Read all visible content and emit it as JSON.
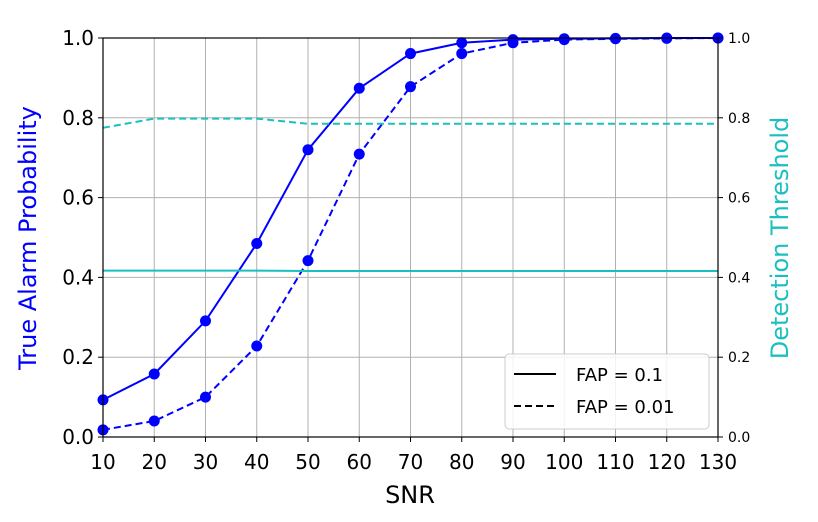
{
  "chart_data": {
    "type": "line",
    "xlabel": "SNR",
    "ylabel": "True Alarm Probability",
    "ylabel_right": "Detection Threshold",
    "x": [
      10,
      20,
      30,
      40,
      50,
      60,
      70,
      80,
      90,
      100,
      110,
      120,
      130
    ],
    "xlim": [
      10,
      130
    ],
    "ylim": [
      0.0,
      1.0
    ],
    "ylim_right": [
      0.0,
      1.0
    ],
    "x_ticks": [
      "10",
      "20",
      "30",
      "40",
      "50",
      "60",
      "70",
      "80",
      "90",
      "100",
      "110",
      "120",
      "130"
    ],
    "y_ticks_left": [
      "0.0",
      "0.2",
      "0.4",
      "0.6",
      "0.8",
      "1.0"
    ],
    "y_ticks_right": [
      "0.0",
      "0.2",
      "0.4",
      "0.6",
      "0.8",
      "1.0"
    ],
    "grid": true,
    "legend_position": "lower-right",
    "legend": [
      {
        "label": "FAP = 0.1",
        "style": "solid"
      },
      {
        "label": "FAP = 0.01",
        "style": "dashed"
      }
    ],
    "colors": {
      "probability": "#0000ff",
      "threshold": "#1ac0c0",
      "grid": "#b0b0b0"
    },
    "series": [
      {
        "axis": "left",
        "style": "solid",
        "color": "#0000ff",
        "values": [
          0.093,
          0.158,
          0.291,
          0.485,
          0.72,
          0.874,
          0.961,
          0.988,
          0.996,
          0.998,
          0.999,
          1.0,
          1.0
        ]
      },
      {
        "axis": "left",
        "style": "dashed",
        "color": "#0000ff",
        "values": [
          0.018,
          0.04,
          0.1,
          0.228,
          0.442,
          0.709,
          0.878,
          0.961,
          0.988,
          0.996,
          0.998,
          0.999,
          1.0
        ]
      },
      {
        "axis": "right",
        "style": "solid",
        "color": "#1ac0c0",
        "values": [
          0.417,
          0.417,
          0.417,
          0.417,
          0.416,
          0.416,
          0.416,
          0.416,
          0.416,
          0.416,
          0.416,
          0.416,
          0.416
        ]
      },
      {
        "axis": "right",
        "style": "dashed",
        "color": "#1ac0c0",
        "values": [
          0.775,
          0.798,
          0.798,
          0.798,
          0.785,
          0.785,
          0.785,
          0.785,
          0.785,
          0.785,
          0.785,
          0.785,
          0.785
        ]
      }
    ]
  }
}
